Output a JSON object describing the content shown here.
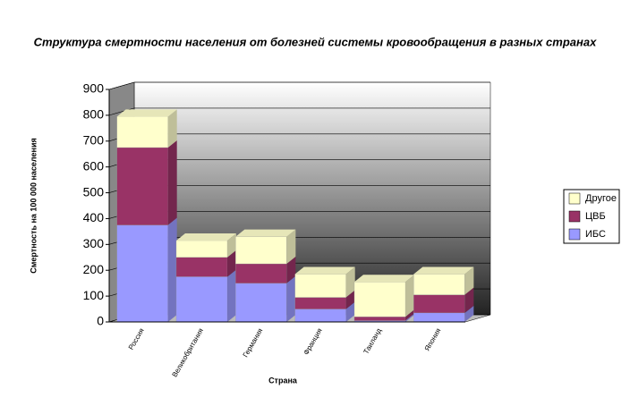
{
  "chart_data": {
    "type": "bar3d_stacked",
    "title": "Структура смертности населения от болезней системы кровообращения в разных странах",
    "x_label": "Страна",
    "y_label": "Смертность на 100 000 населения",
    "categories": [
      "Россия",
      "Великобритания",
      "Германия",
      "Франция",
      "Таиланд",
      "Япония"
    ],
    "series": [
      {
        "name": "ИБС",
        "color": "#9999ff",
        "values": [
          375,
          175,
          150,
          50,
          5,
          35
        ]
      },
      {
        "name": "ЦВБ",
        "color": "#993366",
        "values": [
          300,
          75,
          75,
          45,
          15,
          70
        ]
      },
      {
        "name": "Другое",
        "color": "#ffffcc",
        "values": [
          120,
          65,
          105,
          90,
          135,
          80
        ]
      }
    ],
    "ylim": [
      0,
      900
    ],
    "yticks": [
      0,
      100,
      200,
      300,
      400,
      500,
      600,
      700,
      800,
      900
    ],
    "grid": true,
    "legend": "right"
  }
}
